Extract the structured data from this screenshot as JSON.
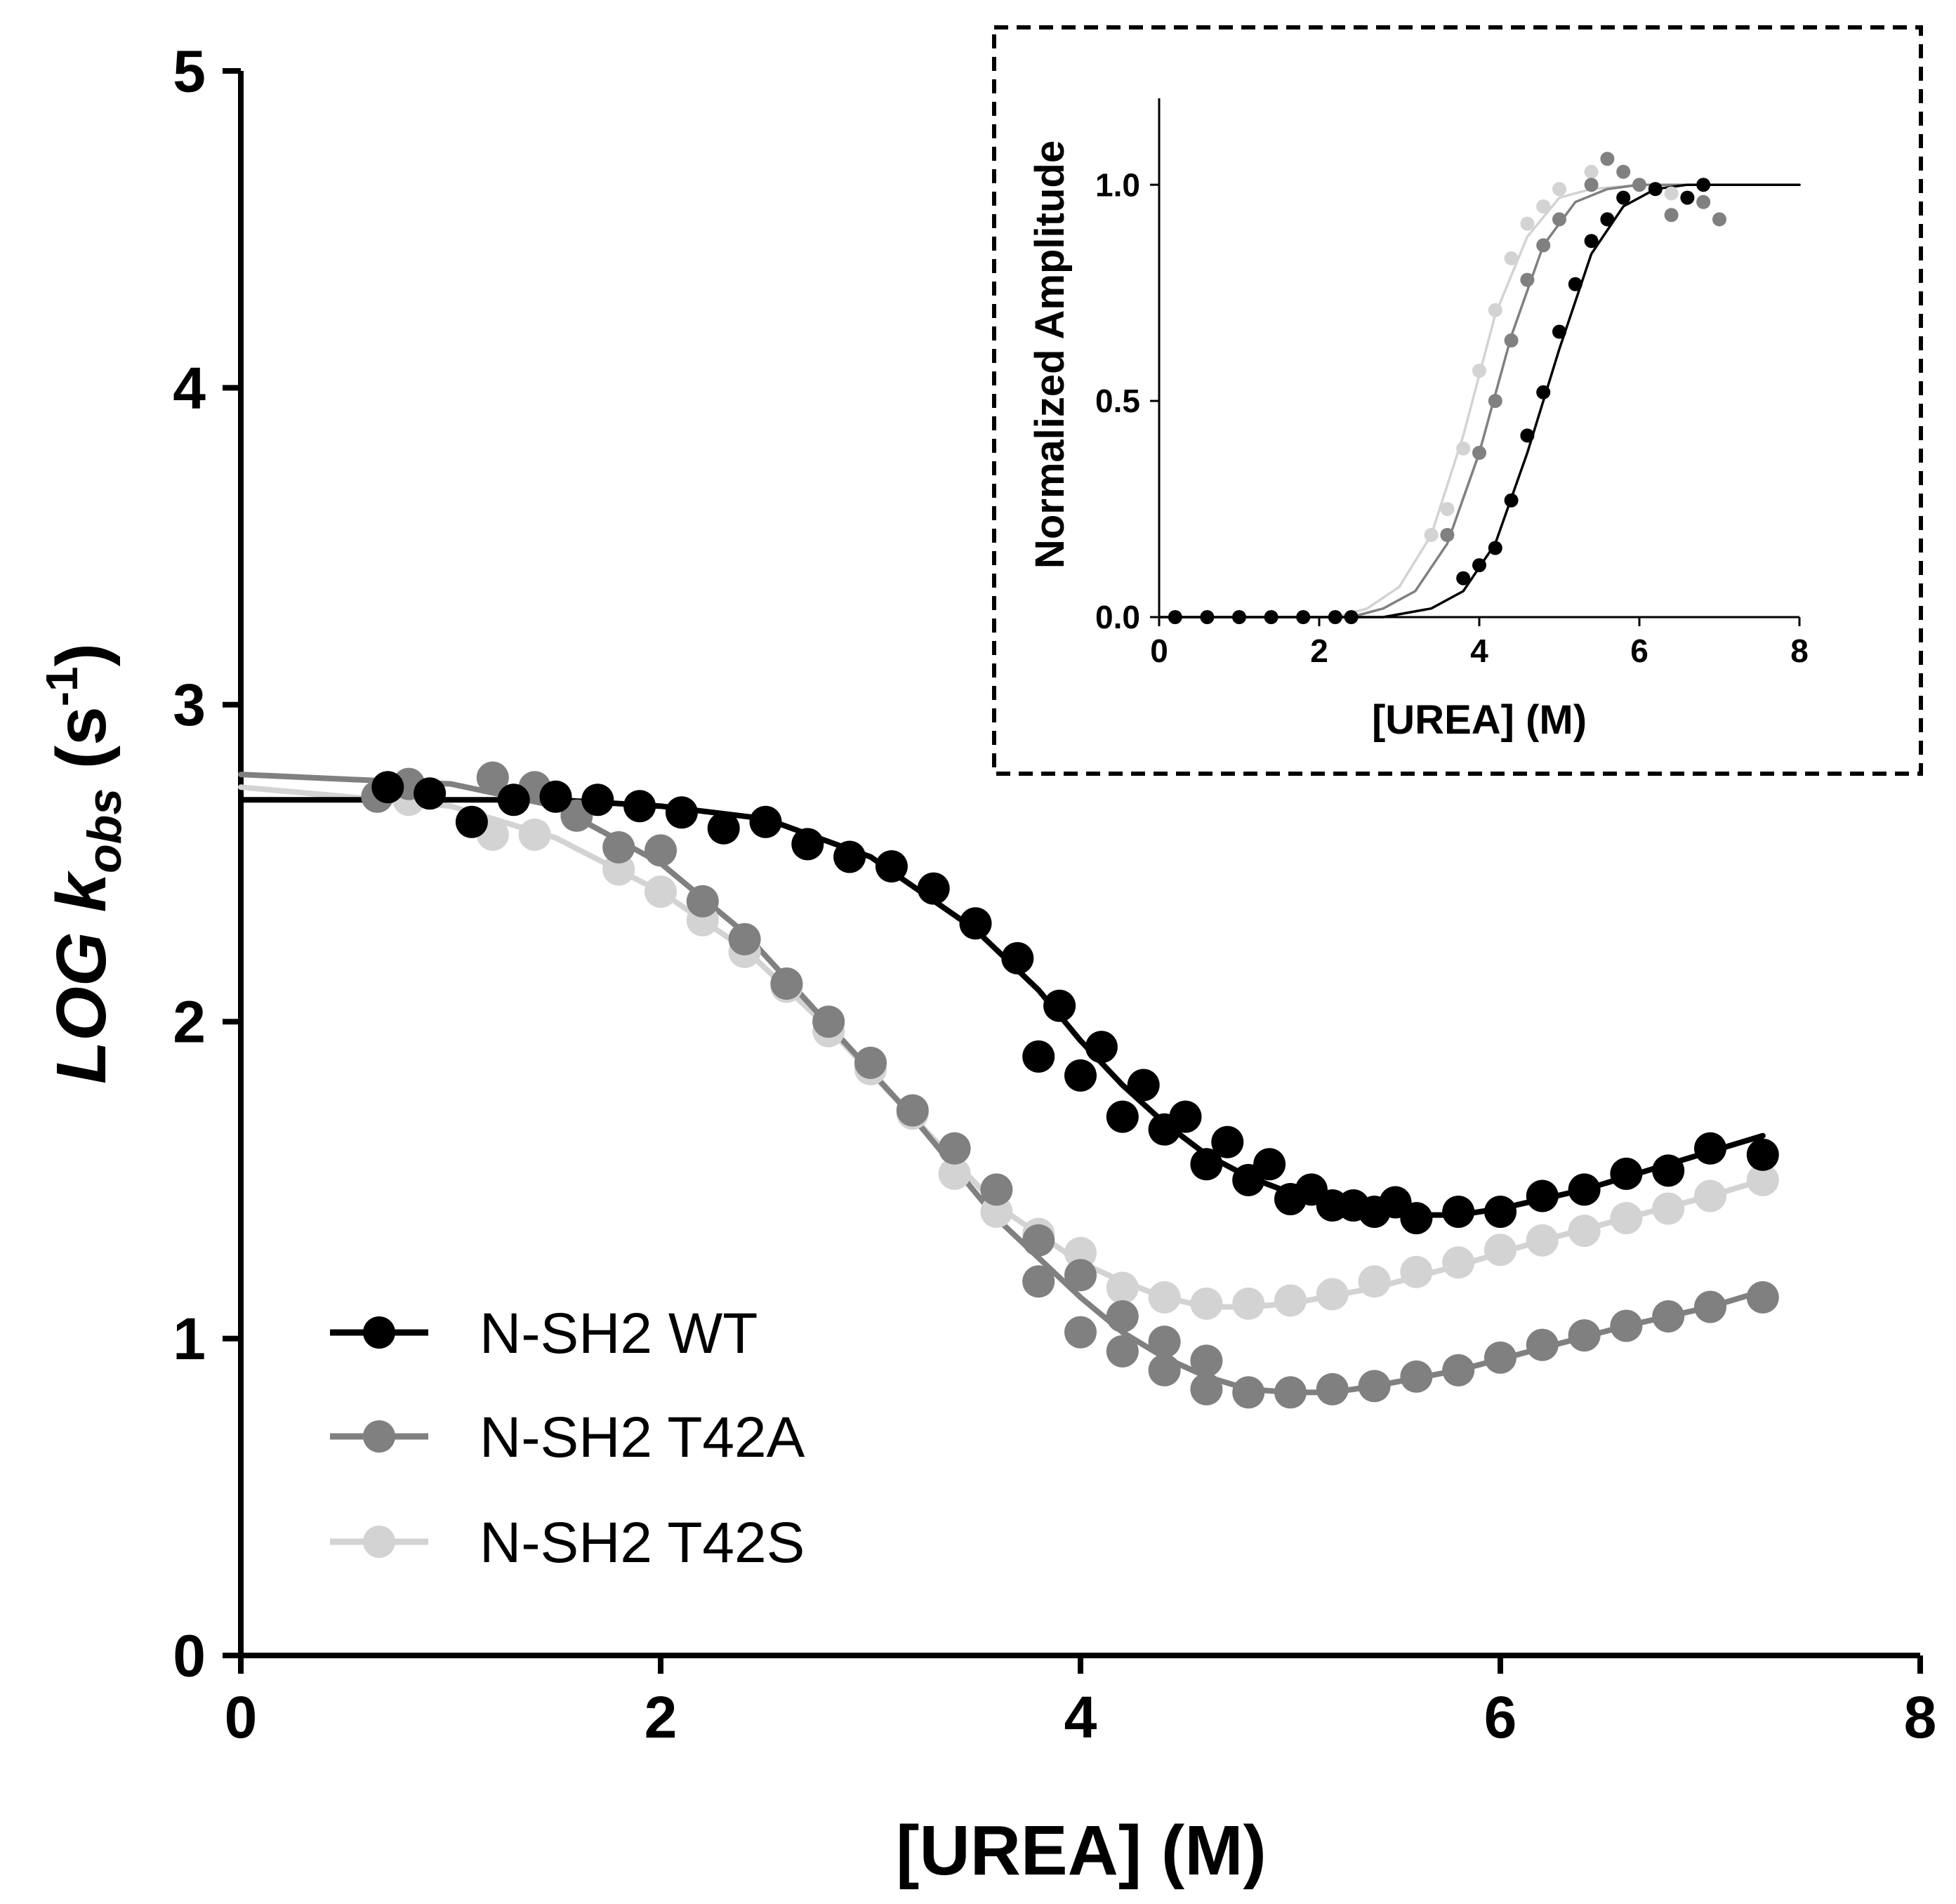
{
  "chart_data": [
    {
      "id": "main",
      "type": "scatter",
      "xlabel": "[UREA] (M)",
      "ylabel": {
        "base": "LOG k",
        "subscript": "obs",
        "unit_base": " (s",
        "unit_superscript": "-1",
        "unit_close": ")"
      },
      "xlim": [
        0,
        8
      ],
      "ylim": [
        0,
        5
      ],
      "xticks": [
        0,
        2,
        4,
        6,
        8
      ],
      "yticks": [
        0,
        1,
        2,
        3,
        4,
        5
      ],
      "grid": false,
      "legend_position": "bottom-left",
      "series": [
        {
          "name": "N-SH2 WT",
          "color": "#000000",
          "points": [
            [
              0.7,
              2.74
            ],
            [
              0.9,
              2.72
            ],
            [
              1.1,
              2.63
            ],
            [
              1.3,
              2.7
            ],
            [
              1.5,
              2.71
            ],
            [
              1.7,
              2.7
            ],
            [
              1.9,
              2.68
            ],
            [
              2.1,
              2.66
            ],
            [
              2.3,
              2.61
            ],
            [
              2.5,
              2.63
            ],
            [
              2.7,
              2.56
            ],
            [
              2.9,
              2.52
            ],
            [
              3.1,
              2.49
            ],
            [
              3.3,
              2.42
            ],
            [
              3.5,
              2.31
            ],
            [
              3.7,
              2.2
            ],
            [
              3.8,
              1.89
            ],
            [
              3.9,
              2.05
            ],
            [
              4.0,
              1.83
            ],
            [
              4.1,
              1.92
            ],
            [
              4.2,
              1.7
            ],
            [
              4.3,
              1.8
            ],
            [
              4.4,
              1.66
            ],
            [
              4.5,
              1.7
            ],
            [
              4.6,
              1.55
            ],
            [
              4.7,
              1.62
            ],
            [
              4.8,
              1.5
            ],
            [
              4.9,
              1.55
            ],
            [
              5.0,
              1.44
            ],
            [
              5.1,
              1.47
            ],
            [
              5.2,
              1.42
            ],
            [
              5.3,
              1.42
            ],
            [
              5.4,
              1.4
            ],
            [
              5.5,
              1.43
            ],
            [
              5.6,
              1.38
            ],
            [
              5.8,
              1.4
            ],
            [
              6.0,
              1.4
            ],
            [
              6.2,
              1.45
            ],
            [
              6.4,
              1.47
            ],
            [
              6.6,
              1.52
            ],
            [
              6.8,
              1.53
            ],
            [
              7.0,
              1.6
            ],
            [
              7.25,
              1.58
            ]
          ],
          "fit": [
            [
              0.0,
              2.7
            ],
            [
              1.0,
              2.7
            ],
            [
              1.5,
              2.7
            ],
            [
              2.0,
              2.68
            ],
            [
              2.5,
              2.64
            ],
            [
              3.0,
              2.52
            ],
            [
              3.5,
              2.29
            ],
            [
              3.8,
              2.1
            ],
            [
              4.0,
              1.94
            ],
            [
              4.2,
              1.8
            ],
            [
              4.4,
              1.68
            ],
            [
              4.6,
              1.58
            ],
            [
              4.8,
              1.51
            ],
            [
              5.0,
              1.46
            ],
            [
              5.2,
              1.42
            ],
            [
              5.4,
              1.4
            ],
            [
              5.6,
              1.39
            ],
            [
              5.8,
              1.39
            ],
            [
              6.0,
              1.41
            ],
            [
              6.2,
              1.44
            ],
            [
              6.4,
              1.47
            ],
            [
              6.6,
              1.51
            ],
            [
              6.8,
              1.55
            ],
            [
              7.0,
              1.59
            ],
            [
              7.25,
              1.64
            ]
          ]
        },
        {
          "name": "N-SH2 T42A",
          "color": "#808080",
          "points": [
            [
              0.65,
              2.71
            ],
            [
              0.8,
              2.75
            ],
            [
              1.2,
              2.77
            ],
            [
              1.4,
              2.74
            ],
            [
              1.6,
              2.65
            ],
            [
              1.8,
              2.55
            ],
            [
              2.0,
              2.54
            ],
            [
              2.2,
              2.38
            ],
            [
              2.4,
              2.26
            ],
            [
              2.6,
              2.12
            ],
            [
              2.8,
              2.0
            ],
            [
              3.0,
              1.87
            ],
            [
              3.2,
              1.72
            ],
            [
              3.4,
              1.6
            ],
            [
              3.6,
              1.47
            ],
            [
              3.8,
              1.31
            ],
            [
              3.8,
              1.18
            ],
            [
              4.0,
              1.2
            ],
            [
              4.0,
              1.02
            ],
            [
              4.2,
              1.07
            ],
            [
              4.2,
              0.96
            ],
            [
              4.4,
              0.99
            ],
            [
              4.4,
              0.9
            ],
            [
              4.6,
              0.93
            ],
            [
              4.6,
              0.84
            ],
            [
              4.8,
              0.83
            ],
            [
              5.0,
              0.83
            ],
            [
              5.2,
              0.84
            ],
            [
              5.4,
              0.85
            ],
            [
              5.6,
              0.88
            ],
            [
              5.8,
              0.9
            ],
            [
              6.0,
              0.94
            ],
            [
              6.2,
              0.98
            ],
            [
              6.4,
              1.01
            ],
            [
              6.6,
              1.04
            ],
            [
              6.8,
              1.07
            ],
            [
              7.0,
              1.1
            ],
            [
              7.25,
              1.13
            ]
          ],
          "fit": [
            [
              0.0,
              2.78
            ],
            [
              1.0,
              2.75
            ],
            [
              1.5,
              2.68
            ],
            [
              2.0,
              2.5
            ],
            [
              2.4,
              2.28
            ],
            [
              2.8,
              1.99
            ],
            [
              3.2,
              1.7
            ],
            [
              3.6,
              1.38
            ],
            [
              4.0,
              1.13
            ],
            [
              4.2,
              1.02
            ],
            [
              4.4,
              0.94
            ],
            [
              4.6,
              0.88
            ],
            [
              4.8,
              0.84
            ],
            [
              5.0,
              0.83
            ],
            [
              5.2,
              0.83
            ],
            [
              5.4,
              0.85
            ],
            [
              5.8,
              0.9
            ],
            [
              6.2,
              0.97
            ],
            [
              6.6,
              1.04
            ],
            [
              7.0,
              1.1
            ],
            [
              7.25,
              1.15
            ]
          ]
        },
        {
          "name": "N-SH2 T42S",
          "color": "#d3d3d3",
          "points": [
            [
              0.8,
              2.7
            ],
            [
              1.2,
              2.59
            ],
            [
              1.4,
              2.59
            ],
            [
              1.8,
              2.48
            ],
            [
              2.0,
              2.41
            ],
            [
              2.2,
              2.32
            ],
            [
              2.4,
              2.22
            ],
            [
              2.6,
              2.11
            ],
            [
              2.8,
              1.97
            ],
            [
              3.0,
              1.85
            ],
            [
              3.2,
              1.71
            ],
            [
              3.4,
              1.52
            ],
            [
              3.6,
              1.4
            ],
            [
              3.8,
              1.33
            ],
            [
              4.0,
              1.27
            ],
            [
              4.2,
              1.16
            ],
            [
              4.4,
              1.13
            ],
            [
              4.6,
              1.11
            ],
            [
              4.8,
              1.11
            ],
            [
              5.0,
              1.12
            ],
            [
              5.2,
              1.14
            ],
            [
              5.4,
              1.18
            ],
            [
              5.6,
              1.21
            ],
            [
              5.8,
              1.24
            ],
            [
              6.0,
              1.28
            ],
            [
              6.2,
              1.31
            ],
            [
              6.4,
              1.34
            ],
            [
              6.6,
              1.38
            ],
            [
              6.8,
              1.41
            ],
            [
              7.0,
              1.45
            ],
            [
              7.25,
              1.5
            ]
          ],
          "fit": [
            [
              0.0,
              2.74
            ],
            [
              1.0,
              2.68
            ],
            [
              1.5,
              2.58
            ],
            [
              2.0,
              2.41
            ],
            [
              2.4,
              2.23
            ],
            [
              2.8,
              1.98
            ],
            [
              3.2,
              1.7
            ],
            [
              3.6,
              1.42
            ],
            [
              4.0,
              1.24
            ],
            [
              4.2,
              1.18
            ],
            [
              4.4,
              1.13
            ],
            [
              4.6,
              1.1
            ],
            [
              4.8,
              1.1
            ],
            [
              5.0,
              1.11
            ],
            [
              5.4,
              1.16
            ],
            [
              5.8,
              1.23
            ],
            [
              6.2,
              1.31
            ],
            [
              6.6,
              1.38
            ],
            [
              7.0,
              1.45
            ],
            [
              7.25,
              1.5
            ]
          ]
        }
      ]
    },
    {
      "id": "inset",
      "type": "scatter",
      "xlabel": "[UREA] (M)",
      "ylabel": "Normalized Amplitude",
      "xlim": [
        0,
        8
      ],
      "ylim": [
        0,
        1.2
      ],
      "xticks": [
        0,
        2,
        4,
        6,
        8
      ],
      "yticks": [
        0.0,
        0.5,
        1.0
      ],
      "ytick_labels": [
        "0.0",
        "0.5",
        "1.0"
      ],
      "grid": false,
      "legend": null,
      "series": [
        {
          "name": "N-SH2 WT",
          "color": "#000000",
          "points": [
            [
              0.2,
              0.0
            ],
            [
              0.6,
              0.0
            ],
            [
              1.0,
              0.0
            ],
            [
              1.4,
              0.0
            ],
            [
              1.8,
              0.0
            ],
            [
              2.2,
              0.0
            ],
            [
              2.4,
              0.0
            ],
            [
              3.8,
              0.09
            ],
            [
              4.0,
              0.12
            ],
            [
              4.2,
              0.16
            ],
            [
              4.4,
              0.27
            ],
            [
              4.6,
              0.42
            ],
            [
              4.8,
              0.52
            ],
            [
              5.0,
              0.66
            ],
            [
              5.2,
              0.77
            ],
            [
              5.4,
              0.87
            ],
            [
              5.6,
              0.92
            ],
            [
              5.8,
              0.97
            ],
            [
              6.2,
              0.99
            ],
            [
              6.6,
              0.97
            ],
            [
              6.8,
              1.0
            ]
          ],
          "fit": [
            [
              0.0,
              0.0
            ],
            [
              2.8,
              0.0
            ],
            [
              3.4,
              0.02
            ],
            [
              3.8,
              0.06
            ],
            [
              4.2,
              0.17
            ],
            [
              4.6,
              0.38
            ],
            [
              5.0,
              0.62
            ],
            [
              5.4,
              0.84
            ],
            [
              5.8,
              0.95
            ],
            [
              6.2,
              0.99
            ],
            [
              6.6,
              1.0
            ],
            [
              8.0,
              1.0
            ]
          ]
        },
        {
          "name": "N-SH2 T42A",
          "color": "#808080",
          "points": [
            [
              3.6,
              0.19
            ],
            [
              4.0,
              0.38
            ],
            [
              4.2,
              0.5
            ],
            [
              4.4,
              0.64
            ],
            [
              4.6,
              0.78
            ],
            [
              4.8,
              0.86
            ],
            [
              5.0,
              0.92
            ],
            [
              5.4,
              1.0
            ],
            [
              5.6,
              1.06
            ],
            [
              5.8,
              1.03
            ],
            [
              6.0,
              1.0
            ],
            [
              6.4,
              0.93
            ],
            [
              6.8,
              0.96
            ],
            [
              7.0,
              0.92
            ]
          ],
          "fit": [
            [
              0.0,
              0.0
            ],
            [
              2.4,
              0.0
            ],
            [
              2.8,
              0.02
            ],
            [
              3.2,
              0.06
            ],
            [
              3.6,
              0.17
            ],
            [
              4.0,
              0.38
            ],
            [
              4.4,
              0.65
            ],
            [
              4.8,
              0.86
            ],
            [
              5.2,
              0.96
            ],
            [
              5.6,
              0.99
            ],
            [
              6.0,
              1.0
            ],
            [
              8.0,
              1.0
            ]
          ]
        },
        {
          "name": "N-SH2 T42S",
          "color": "#d3d3d3",
          "points": [
            [
              3.4,
              0.19
            ],
            [
              3.6,
              0.25
            ],
            [
              3.8,
              0.39
            ],
            [
              4.0,
              0.57
            ],
            [
              4.2,
              0.71
            ],
            [
              4.4,
              0.83
            ],
            [
              4.6,
              0.91
            ],
            [
              4.8,
              0.95
            ],
            [
              5.0,
              0.99
            ],
            [
              5.4,
              1.03
            ],
            [
              6.4,
              0.98
            ]
          ],
          "fit": [
            [
              0.0,
              0.0
            ],
            [
              2.2,
              0.0
            ],
            [
              2.6,
              0.02
            ],
            [
              3.0,
              0.07
            ],
            [
              3.4,
              0.19
            ],
            [
              3.8,
              0.42
            ],
            [
              4.2,
              0.7
            ],
            [
              4.6,
              0.88
            ],
            [
              5.0,
              0.97
            ],
            [
              5.4,
              0.99
            ],
            [
              6.0,
              1.0
            ],
            [
              8.0,
              1.0
            ]
          ]
        }
      ]
    }
  ]
}
